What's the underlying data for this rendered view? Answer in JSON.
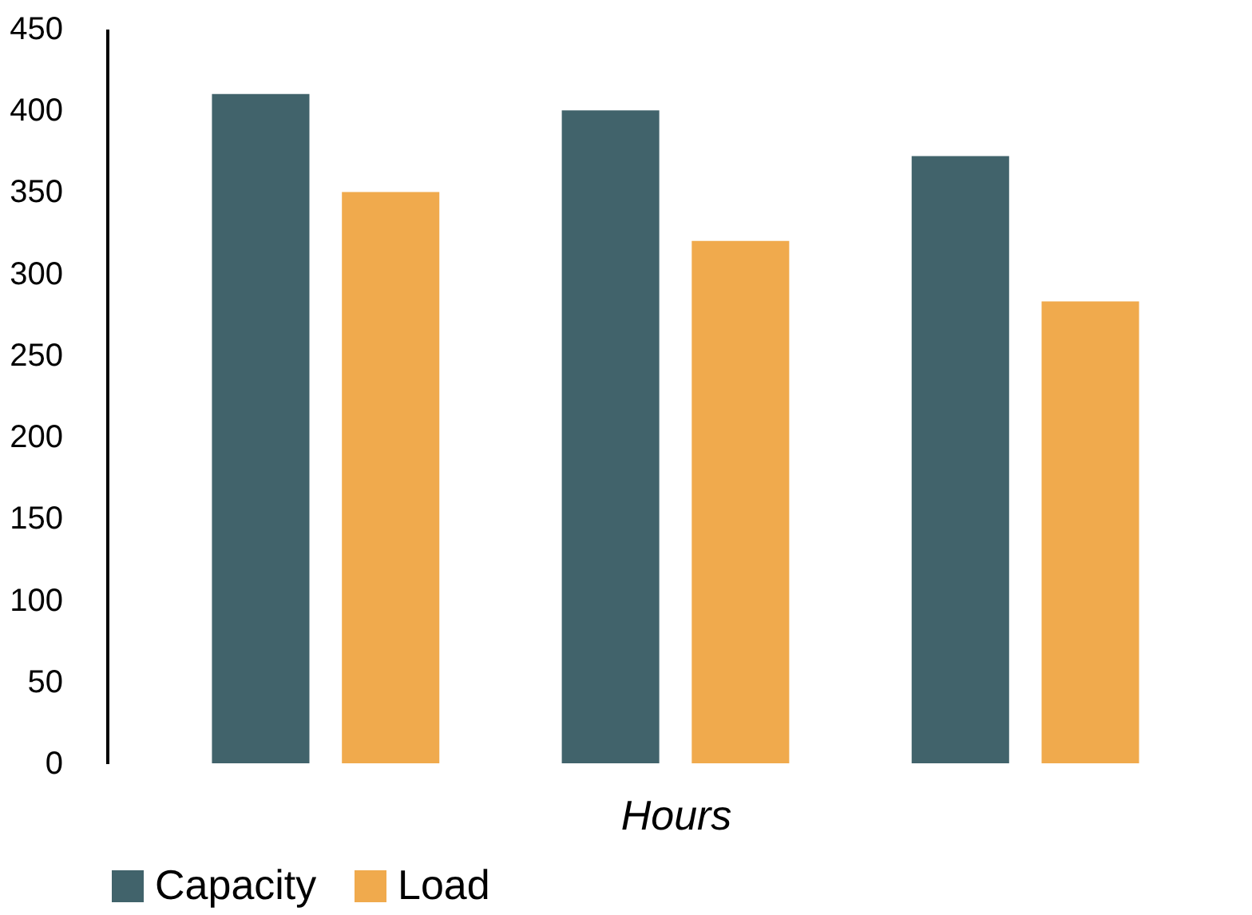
{
  "chart_data": {
    "type": "bar",
    "xlabel": "Hours",
    "categories": [
      null,
      null,
      null
    ],
    "series": [
      {
        "name": "Capacity",
        "color": "#41636b",
        "values": [
          410,
          400,
          372
        ]
      },
      {
        "name": "Load",
        "color": "#f0aa4d",
        "values": [
          350,
          320,
          283
        ]
      }
    ],
    "ylim": [
      0,
      450
    ],
    "yticks": [
      0,
      50,
      100,
      150,
      200,
      250,
      300,
      350,
      400,
      450
    ],
    "grid": false,
    "legend": "bottom left",
    "tick_labels": "y"
  }
}
